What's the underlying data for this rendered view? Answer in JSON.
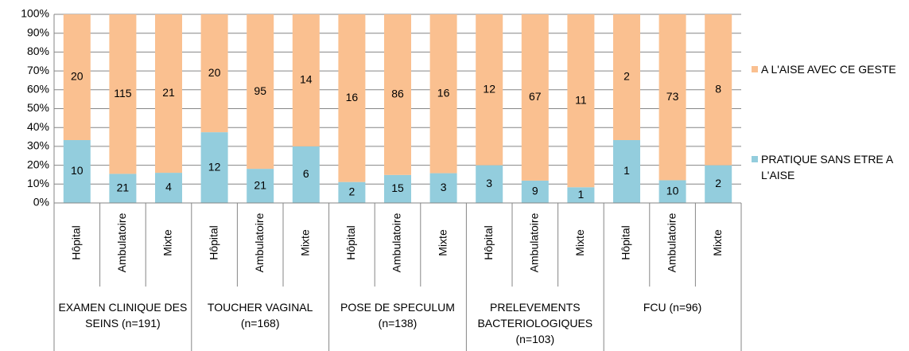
{
  "chart_data": {
    "type": "bar",
    "stacking": "percent",
    "groups": [
      {
        "name": "EXAMEN CLINIQUE DES SEINS (n=191)",
        "categories": [
          "Hôpital",
          "Ambulatoire",
          "Mixte"
        ]
      },
      {
        "name": "TOUCHER VAGINAL (n=168)",
        "categories": [
          "Hôpital",
          "Ambulatoire",
          "Mixte"
        ]
      },
      {
        "name": "POSE DE SPECULUM (n=138)",
        "categories": [
          "Hôpital",
          "Ambulatoire",
          "Mixte"
        ]
      },
      {
        "name": "PRELEVEMENTS BACTERIOLOGIQUES (n=103)",
        "categories": [
          "Hôpital",
          "Ambulatoire",
          "Mixte"
        ]
      },
      {
        "name": "FCU (n=96)",
        "categories": [
          "Hôpital",
          "Ambulatoire",
          "Mixte"
        ]
      }
    ],
    "series": [
      {
        "name": "PRATIQUE SANS ETRE A L'AISE",
        "color": "#93cddd",
        "values": [
          10,
          21,
          4,
          12,
          21,
          6,
          2,
          15,
          3,
          3,
          9,
          1,
          1,
          10,
          2
        ]
      },
      {
        "name": "A L'AISE AVEC CE GESTE",
        "color": "#fac090",
        "values": [
          20,
          115,
          21,
          20,
          95,
          14,
          16,
          86,
          16,
          12,
          67,
          11,
          2,
          73,
          8
        ]
      }
    ],
    "ylim": [
      0,
      100
    ],
    "yticks": [
      {
        "value": 0,
        "label": "0%"
      },
      {
        "value": 10,
        "label": "10%"
      },
      {
        "value": 20,
        "label": "20%"
      },
      {
        "value": 30,
        "label": "30%"
      },
      {
        "value": 40,
        "label": "40%"
      },
      {
        "value": 50,
        "label": "50%"
      },
      {
        "value": 60,
        "label": "60%"
      },
      {
        "value": 70,
        "label": "70%"
      },
      {
        "value": 80,
        "label": "80%"
      },
      {
        "value": 90,
        "label": "90%"
      },
      {
        "value": 100,
        "label": "100%"
      }
    ],
    "grid": true
  }
}
